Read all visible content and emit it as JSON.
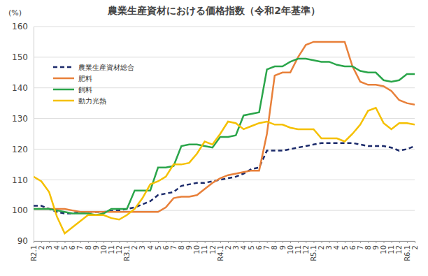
{
  "chart_data": {
    "type": "line",
    "title": "農業生産資材における価格指数（令和2年基準）",
    "ylabel": "(%)",
    "categories": [
      "R2.1",
      "2",
      "3",
      "4",
      "5",
      "6",
      "7",
      "8",
      "9",
      "10",
      "11",
      "12",
      "R3.1",
      "2",
      "3",
      "4",
      "5",
      "6",
      "7",
      "8",
      "9",
      "10",
      "11",
      "12",
      "R4.1",
      "2",
      "3",
      "4",
      "5",
      "6",
      "7",
      "8",
      "9",
      "10",
      "11",
      "12",
      "R5.1",
      "2",
      "3",
      "4",
      "5",
      "6",
      "7",
      "8",
      "9",
      "10",
      "11",
      "12",
      "R6.1",
      "2"
    ],
    "series": [
      {
        "name": "農業生産資材総合",
        "color": "#1c2b6b",
        "line_style": "dashed",
        "values": [
          101.5,
          101.5,
          100.5,
          99.5,
          99,
          99,
          99.5,
          99.5,
          99.5,
          99.5,
          99.8,
          100,
          100.5,
          101,
          102,
          103,
          105,
          105.5,
          106,
          108,
          108.5,
          109,
          109,
          109.5,
          110,
          110.5,
          111,
          112,
          113.5,
          114,
          119.5,
          119.5,
          119.5,
          120,
          120.5,
          121,
          121.5,
          122,
          122,
          122,
          122,
          122,
          121.5,
          121,
          121,
          121,
          120.5,
          119.5,
          120,
          121
        ]
      },
      {
        "name": "肥料",
        "color": "#e8803a",
        "line_style": "solid",
        "values": [
          100.5,
          100.5,
          100.5,
          100.5,
          100.5,
          100,
          99.5,
          99.5,
          99.5,
          99.5,
          99.5,
          99.5,
          99.5,
          99.5,
          99.5,
          99.5,
          99.5,
          101,
          104,
          104.5,
          104.5,
          105,
          107,
          109,
          110.5,
          111.5,
          112,
          112.5,
          113,
          113,
          125,
          144,
          145,
          145,
          150,
          154,
          155,
          155,
          155,
          155,
          155,
          147,
          142,
          141,
          141,
          140.5,
          139,
          136,
          135,
          134.5
        ]
      },
      {
        "name": "飼料",
        "color": "#2aa54a",
        "line_style": "solid",
        "values": [
          100.5,
          100.5,
          100.5,
          100,
          99.5,
          99,
          99,
          99,
          98.5,
          99,
          100.5,
          100.5,
          100.5,
          106.5,
          106.5,
          106.5,
          114,
          114,
          114.5,
          121,
          121.5,
          121.5,
          121,
          120.5,
          124,
          124,
          124.5,
          131,
          131.5,
          132,
          146,
          147,
          147,
          148.5,
          149.5,
          149.5,
          149,
          148.5,
          148.5,
          147.5,
          147,
          147,
          145.5,
          145,
          145,
          142.5,
          142,
          142.5,
          144.5,
          144.5
        ]
      },
      {
        "name": "動力光熱",
        "color": "#f5c000",
        "line_style": "solid",
        "values": [
          111,
          109.5,
          106,
          98,
          92.5,
          94.5,
          96.5,
          98.5,
          98.5,
          98.5,
          97.5,
          97,
          98.5,
          100.5,
          104,
          108.5,
          109.5,
          111,
          115,
          115,
          115.5,
          118.5,
          122.5,
          121.5,
          125,
          129,
          128.5,
          126.5,
          127.5,
          128.5,
          129,
          128,
          128,
          127,
          126.5,
          126.5,
          126.5,
          123.5,
          123.5,
          123.5,
          122.5,
          125,
          128,
          132.5,
          133.5,
          128.5,
          126.5,
          128.5,
          128.5,
          128
        ]
      }
    ],
    "ylim": [
      90,
      160
    ],
    "yticks": [
      90,
      100,
      110,
      120,
      130,
      140,
      150,
      160
    ],
    "grid": true,
    "legend": "upper left"
  }
}
